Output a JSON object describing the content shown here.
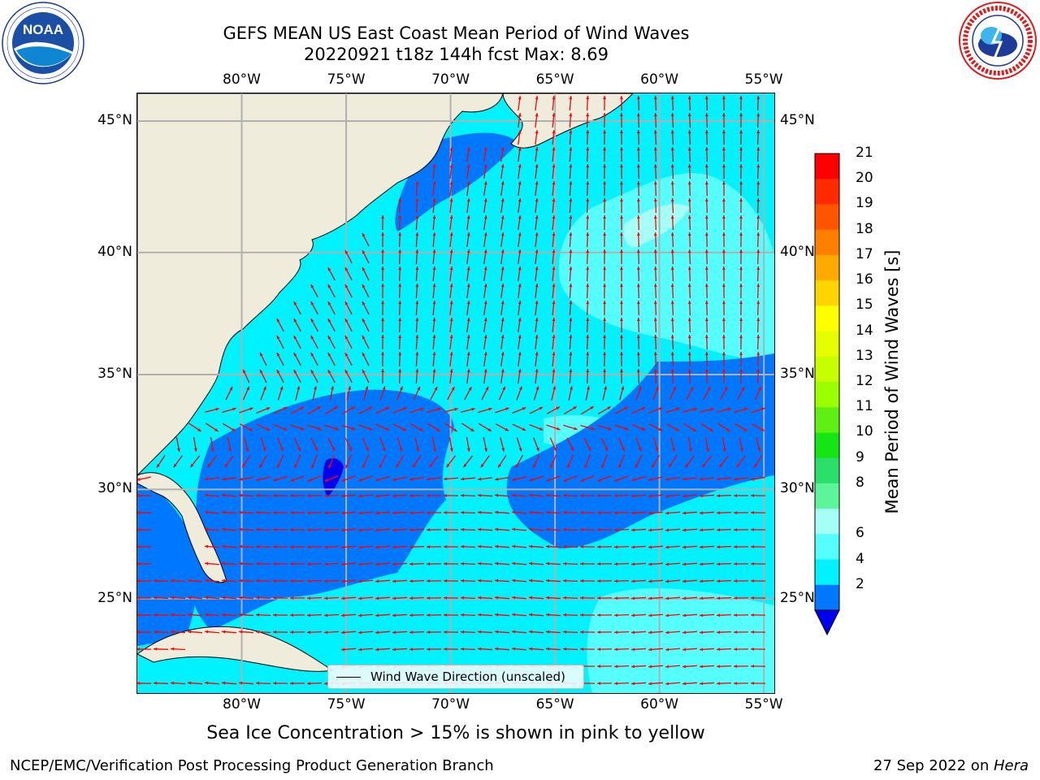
{
  "title": {
    "line1": "GEFS MEAN US East Coast Mean Period of Wind Waves",
    "line2": "20220921 t18z 144h fcst   Max: 8.69"
  },
  "map": {
    "lon_ticks": [
      "80°W",
      "75°W",
      "70°W",
      "65°W",
      "60°W",
      "55°W"
    ],
    "lat_ticks": [
      "45°N",
      "40°N",
      "35°N",
      "30°N",
      "25°N"
    ],
    "lon_range": [
      -85,
      -54.5
    ],
    "lat_range": [
      20.5,
      46
    ],
    "land_color": "#efecdc",
    "grid_color": "#b0b0b0",
    "arrow_color": "#ff0000"
  },
  "legend": {
    "label": "Wind Wave Direction (unscaled)"
  },
  "colorbar": {
    "title": "Mean Period of Wind Waves [s]",
    "ticks": [
      "21",
      "20",
      "19",
      "18",
      "17",
      "16",
      "15",
      "14",
      "13",
      "12",
      "11",
      "10",
      "9",
      "8",
      "6",
      "4",
      "2"
    ],
    "colors": [
      "#ff0000",
      "#ff2a00",
      "#ff5500",
      "#ff8000",
      "#ffaa00",
      "#ffd400",
      "#ffff00",
      "#e6ff00",
      "#c8ff00",
      "#9bff00",
      "#5fef14",
      "#14e614",
      "#2be06a",
      "#5cf59a",
      "#a6fff7",
      "#55ffff",
      "#00f2ff",
      "#0077ff"
    ],
    "extend_color": "#0000ee"
  },
  "ice_note": "Sea Ice Concentration > 15% is shown in pink to yellow",
  "footer": {
    "left": "NCEP/EMC/Verification Post Processing Product Generation Branch",
    "right_prefix": "27 Sep 2022 on ",
    "right_machine": "Hera"
  },
  "logos": {
    "noaa": "NOAA",
    "noaa_ring": "NATIONAL OCEANIC AND ATMOSPHERIC ADMINISTRATION · U.S. DEPARTMENT OF COMMERCE",
    "nws_ring": "NATIONAL WEATHER SERVICE"
  }
}
